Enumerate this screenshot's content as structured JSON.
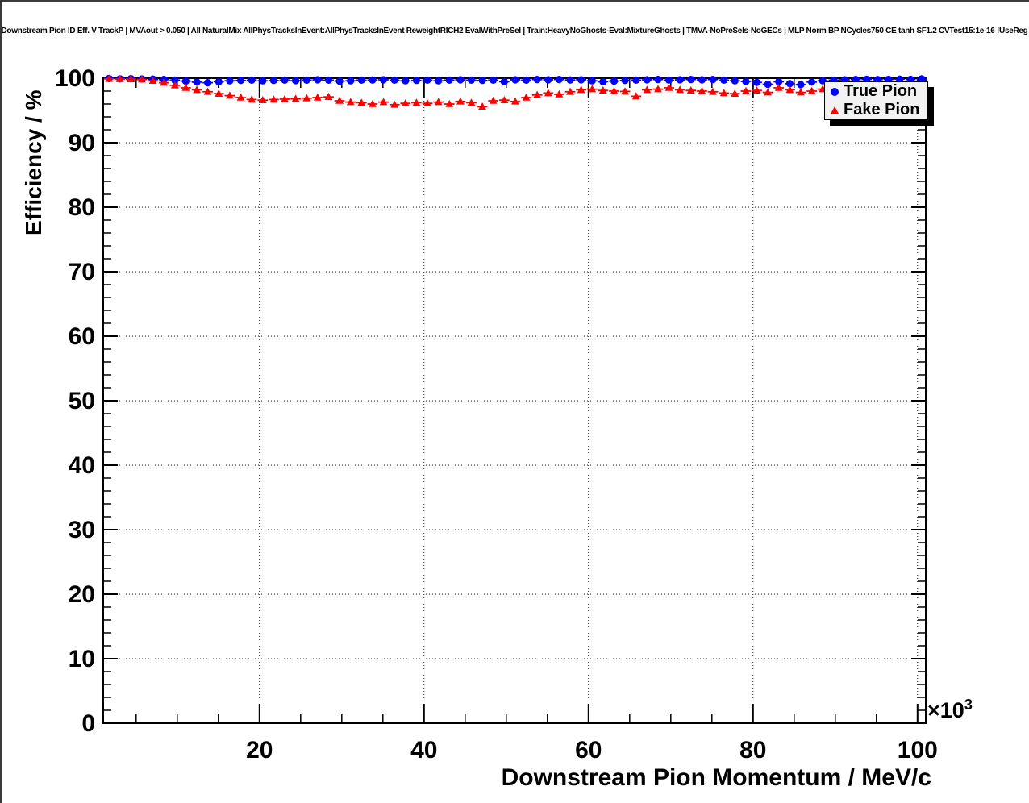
{
  "title": "Downstream Pion ID Eff. V TrackP | MVAout > 0.050 | All NaturalMix AllPhysTracksInEvent:AllPhysTracksInEvent ReweightRICH2 EvalWithPreSel | Train:HeavyNoGhosts-Eval:MixtureGhosts | TMVA-NoPreSels-NoGECs | MLP Norm BP NCycles750 CE tanh SF1.2 CVTest15:1e-16 !UseReg",
  "axes": {
    "y": {
      "title": "Efficiency / %",
      "min": 0,
      "max": 100,
      "major_step": 10,
      "minor_step": 2,
      "tick_labels": [
        "0",
        "10",
        "20",
        "30",
        "40",
        "50",
        "60",
        "70",
        "80",
        "90",
        "100"
      ]
    },
    "x": {
      "title": "Downstream Pion Momentum / MeV/c",
      "min": 1,
      "max": 101,
      "major_ticks": [
        20,
        40,
        60,
        80,
        100
      ],
      "minor_step": 5,
      "tick_labels": [
        "20",
        "40",
        "60",
        "80",
        "100"
      ],
      "power_base": "×10",
      "power_exp": "3"
    }
  },
  "legend": {
    "bg": "#f2f2f2",
    "entries": [
      {
        "label": "True Pion",
        "marker": "circle",
        "color": "#0000ff"
      },
      {
        "label": "Fake Pion",
        "marker": "triangle",
        "color": "#ff0000"
      }
    ]
  },
  "chart_data": {
    "type": "scatter",
    "title": "Downstream Pion ID Eff. V TrackP | MVAout > 0.050",
    "xlabel": "Downstream Pion Momentum / MeV/c",
    "ylabel": "Efficiency / %",
    "x_unit_multiplier": 1000,
    "xlim": [
      1,
      101
    ],
    "ylim": [
      0,
      100
    ],
    "grid": true,
    "grid_style": "dotted",
    "legend_position": "top-right",
    "x": [
      1.7,
      3.03,
      4.37,
      5.7,
      7.04,
      8.37,
      9.71,
      11.04,
      12.38,
      13.71,
      15.05,
      16.38,
      17.72,
      19.05,
      20.39,
      21.72,
      23.06,
      24.39,
      25.73,
      27.06,
      28.4,
      29.73,
      31.07,
      32.4,
      33.74,
      35.07,
      36.41,
      37.74,
      39.08,
      40.41,
      41.75,
      43.08,
      44.42,
      45.75,
      47.09,
      48.42,
      49.76,
      51.09,
      52.43,
      53.76,
      55.1,
      56.43,
      57.77,
      59.1,
      60.44,
      61.77,
      63.11,
      64.44,
      65.78,
      67.11,
      68.45,
      69.78,
      71.12,
      72.45,
      73.79,
      75.12,
      76.46,
      77.79,
      79.13,
      80.46,
      81.8,
      83.13,
      84.47,
      85.8,
      87.14,
      88.47,
      89.81,
      91.14,
      92.48,
      93.81,
      95.15,
      96.48,
      97.82,
      99.15,
      100.49
    ],
    "series": [
      {
        "name": "True Pion",
        "color": "#0000ff",
        "marker": "circle",
        "y": [
          99.95,
          99.9,
          99.92,
          99.88,
          99.85,
          99.8,
          99.7,
          99.55,
          99.4,
          99.3,
          99.45,
          99.6,
          99.65,
          99.7,
          99.6,
          99.65,
          99.7,
          99.62,
          99.7,
          99.75,
          99.7,
          99.55,
          99.6,
          99.7,
          99.72,
          99.75,
          99.7,
          99.6,
          99.65,
          99.7,
          99.6,
          99.7,
          99.75,
          99.7,
          99.65,
          99.7,
          99.45,
          99.75,
          99.7,
          99.8,
          99.75,
          99.8,
          99.72,
          99.75,
          99.6,
          99.45,
          99.55,
          99.65,
          99.7,
          99.75,
          99.8,
          99.7,
          99.75,
          99.8,
          99.75,
          99.8,
          99.7,
          99.6,
          99.5,
          99.35,
          99.05,
          99.45,
          99.15,
          99.0,
          99.4,
          99.6,
          99.7,
          99.75,
          99.8,
          99.82,
          99.78,
          99.82,
          99.85,
          99.82,
          99.9
        ],
        "yerr": [
          0.05,
          0.05,
          0.05,
          0.06,
          0.06,
          0.07,
          0.08,
          0.1,
          0.12,
          0.12,
          0.1,
          0.08,
          0.08,
          0.08,
          0.08,
          0.08,
          0.08,
          0.08,
          0.08,
          0.08,
          0.08,
          0.1,
          0.1,
          0.08,
          0.08,
          0.08,
          0.08,
          0.09,
          0.09,
          0.08,
          0.09,
          0.08,
          0.08,
          0.08,
          0.09,
          0.08,
          0.12,
          0.08,
          0.08,
          0.07,
          0.08,
          0.07,
          0.08,
          0.08,
          0.1,
          0.12,
          0.1,
          0.1,
          0.09,
          0.08,
          0.08,
          0.09,
          0.08,
          0.08,
          0.08,
          0.08,
          0.09,
          0.1,
          0.12,
          0.15,
          0.3,
          0.2,
          0.3,
          0.35,
          0.25,
          0.15,
          0.12,
          0.1,
          0.1,
          0.1,
          0.1,
          0.1,
          0.1,
          0.12,
          0.1
        ]
      },
      {
        "name": "Fake Pion",
        "color": "#ff0000",
        "marker": "triangle",
        "y": [
          99.9,
          99.88,
          99.85,
          99.8,
          99.6,
          99.3,
          98.9,
          98.5,
          98.2,
          97.9,
          97.6,
          97.3,
          97.0,
          96.7,
          96.6,
          96.7,
          96.75,
          96.8,
          96.9,
          97.0,
          97.1,
          96.5,
          96.3,
          96.2,
          96.0,
          96.3,
          95.9,
          96.1,
          96.2,
          96.1,
          96.3,
          96.0,
          96.4,
          96.2,
          95.6,
          96.5,
          96.6,
          96.4,
          97.0,
          97.4,
          97.7,
          97.5,
          97.9,
          98.2,
          98.3,
          98.1,
          98.0,
          97.95,
          97.2,
          98.2,
          98.3,
          98.5,
          98.2,
          98.1,
          98.0,
          97.9,
          97.7,
          97.6,
          98.0,
          98.1,
          97.8,
          98.5,
          98.2,
          97.8,
          98.0,
          98.3,
          98.2,
          98.4,
          98.1,
          98.3,
          98.2,
          98.4,
          98.3,
          98.2,
          98.4
        ],
        "yerr": [
          0.05,
          0.05,
          0.06,
          0.08,
          0.1,
          0.12,
          0.15,
          0.15,
          0.15,
          0.15,
          0.15,
          0.15,
          0.15,
          0.15,
          0.15,
          0.15,
          0.15,
          0.15,
          0.15,
          0.15,
          0.18,
          0.18,
          0.18,
          0.18,
          0.2,
          0.2,
          0.2,
          0.2,
          0.2,
          0.2,
          0.2,
          0.2,
          0.2,
          0.2,
          0.25,
          0.2,
          0.2,
          0.2,
          0.2,
          0.18,
          0.18,
          0.18,
          0.18,
          0.18,
          0.18,
          0.18,
          0.2,
          0.2,
          0.25,
          0.2,
          0.18,
          0.18,
          0.2,
          0.2,
          0.2,
          0.2,
          0.22,
          0.22,
          0.2,
          0.2,
          0.25,
          0.2,
          0.25,
          0.3,
          0.25,
          0.25,
          0.25,
          0.25,
          0.3,
          0.3,
          0.3,
          0.3,
          0.3,
          0.35,
          0.35
        ]
      }
    ]
  }
}
